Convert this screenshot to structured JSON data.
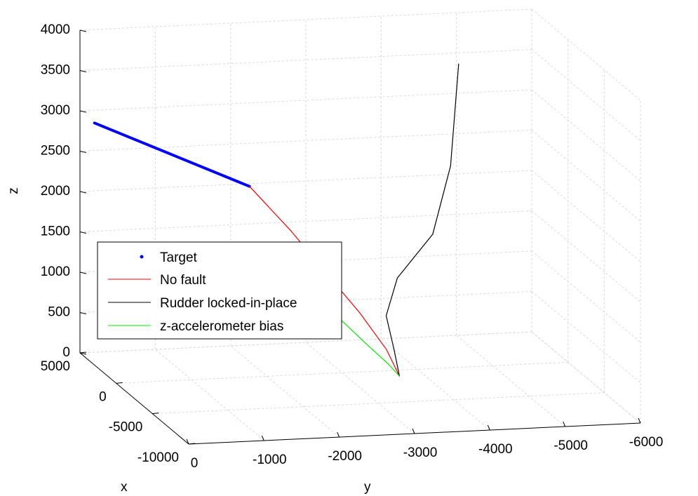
{
  "chart_data": {
    "type": "line",
    "view": "3d",
    "xlabel": "x",
    "ylabel": "y",
    "zlabel": "z",
    "xlim": [
      -10000,
      5000
    ],
    "ylim": [
      -6000,
      0
    ],
    "zlim": [
      0,
      4000
    ],
    "x_ticks": [
      5000,
      0,
      -5000,
      -10000
    ],
    "y_ticks": [
      0,
      -1000,
      -2000,
      -3000,
      -4000,
      -5000,
      -6000
    ],
    "z_ticks": [
      0,
      500,
      1000,
      1500,
      2000,
      2500,
      3000,
      3500,
      4000
    ],
    "grid": true,
    "legend_position": "bottom-left",
    "series": [
      {
        "name": "Target",
        "color": "#0000ff",
        "style": "thick-dots",
        "points": [
          [
            3000,
            0,
            3000
          ],
          [
            -8000,
            -1000,
            3000
          ]
        ]
      },
      {
        "name": "No fault",
        "color": "#ff0000",
        "style": "line",
        "points": [
          [
            -8000,
            -1000,
            3000
          ],
          [
            -6500,
            -1700,
            2300
          ],
          [
            -5000,
            -2300,
            1650
          ],
          [
            -4000,
            -2850,
            1050
          ],
          [
            -3000,
            -3300,
            500
          ],
          [
            -2200,
            -3550,
            100
          ]
        ]
      },
      {
        "name": "Rudder locked-in-place",
        "color": "#000000",
        "style": "line",
        "points": [
          [
            -2200,
            -3550,
            100
          ],
          [
            -3000,
            -3400,
            500
          ],
          [
            -4000,
            -3200,
            1000
          ],
          [
            -4500,
            -3300,
            1500
          ],
          [
            -4200,
            -3800,
            2000
          ],
          [
            -2500,
            -4200,
            2700
          ],
          [
            -500,
            -4500,
            3800
          ]
        ]
      },
      {
        "name": "z-accelerometer bias",
        "color": "#00ee00",
        "style": "line",
        "points": [
          [
            -8000,
            -1000,
            2000
          ],
          [
            -6500,
            -1700,
            1600
          ],
          [
            -5000,
            -2400,
            1150
          ],
          [
            -3800,
            -2950,
            650
          ],
          [
            -2700,
            -3350,
            300
          ],
          [
            -2200,
            -3550,
            100
          ]
        ]
      }
    ]
  }
}
